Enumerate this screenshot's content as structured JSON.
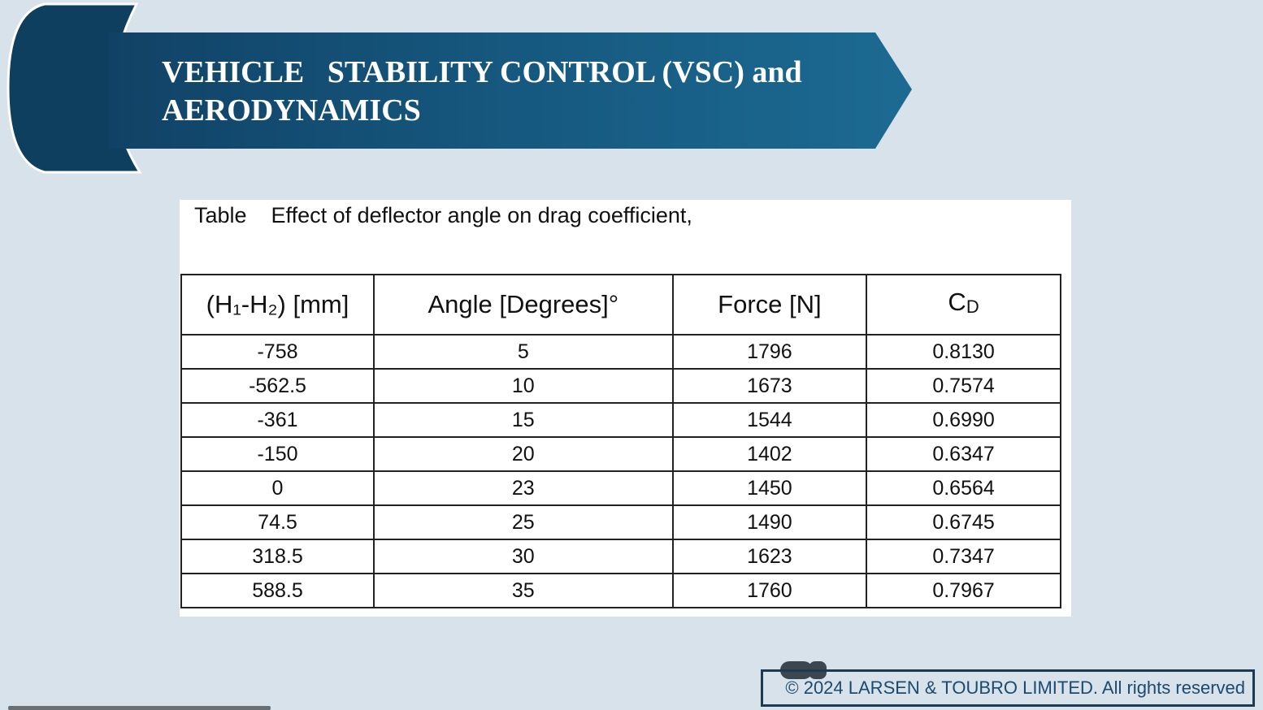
{
  "header": {
    "title_lines": [
      "VEHICLE   STABILITY CONTROL (VSC) and",
      "AERODYNAMICS"
    ]
  },
  "table": {
    "caption_label": "Table",
    "caption": "Effect of deflector angle on drag coefficient,",
    "columns": [
      "(H₁-H₂) [mm]",
      "Angle [Degrees]°",
      "Force [N]",
      {
        "main": "C",
        "sub": "D"
      }
    ],
    "rows": [
      [
        "-758",
        "5",
        "1796",
        "0.8130"
      ],
      [
        "-562.5",
        "10",
        "1673",
        "0.7574"
      ],
      [
        "-361",
        "15",
        "1544",
        "0.6990"
      ],
      [
        "-150",
        "20",
        "1402",
        "0.6347"
      ],
      [
        "0",
        "23",
        "1450",
        "0.6564"
      ],
      [
        "74.5",
        "25",
        "1490",
        "0.6745"
      ],
      [
        "318.5",
        "30",
        "1623",
        "0.7347"
      ],
      [
        "588.5",
        "35",
        "1760",
        "0.7967"
      ]
    ]
  },
  "footer": {
    "copyright": "© 2024 LARSEN & TOUBRO LIMITED. All rights reserved"
  }
}
